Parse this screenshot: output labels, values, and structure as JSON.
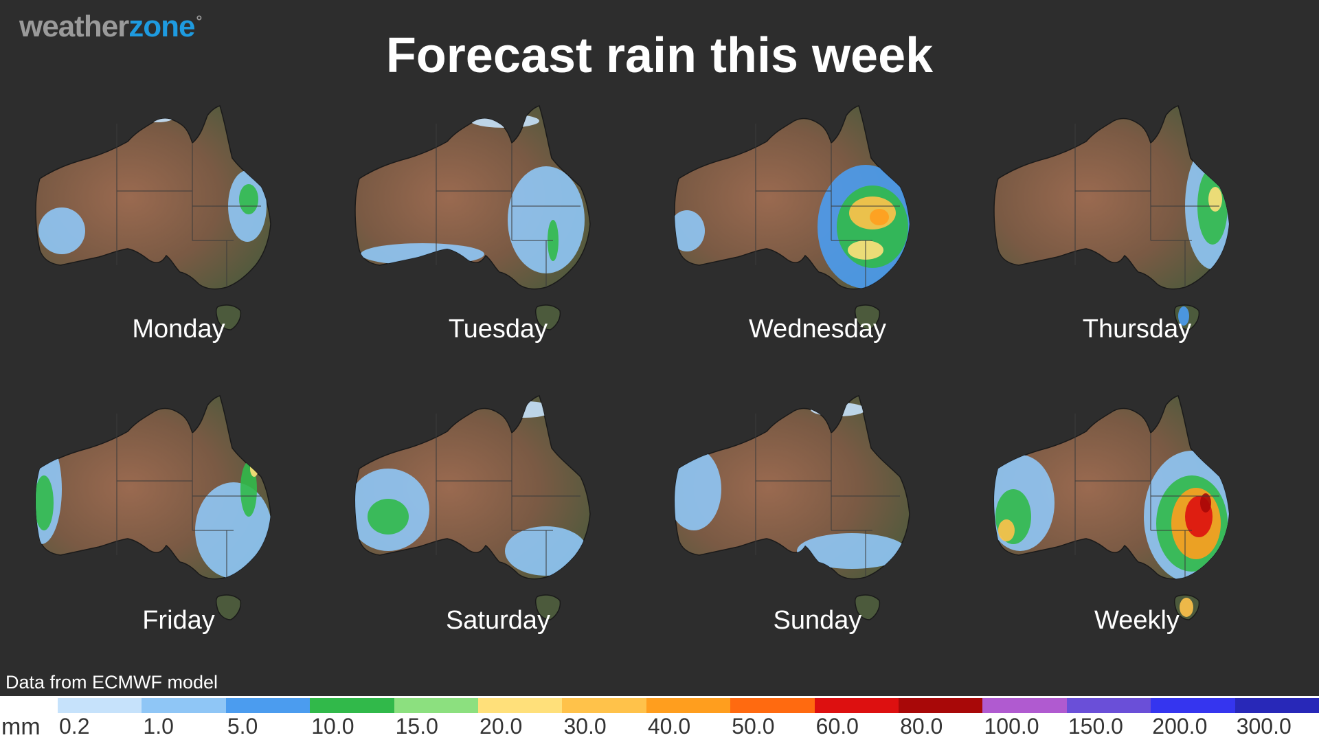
{
  "brand": {
    "name_part1": "weather",
    "name_part2": "zone",
    "symbol": "°"
  },
  "title": "Forecast rain this week",
  "panels": [
    {
      "label": "Monday"
    },
    {
      "label": "Tuesday"
    },
    {
      "label": "Wednesday"
    },
    {
      "label": "Thursday"
    },
    {
      "label": "Friday"
    },
    {
      "label": "Saturday"
    },
    {
      "label": "Sunday"
    },
    {
      "label": "Weekly"
    }
  ],
  "source": "Data from ECMWF model",
  "legend": {
    "unit": "mm",
    "ticks": [
      "0.2",
      "1.0",
      "5.0",
      "10.0",
      "15.0",
      "20.0",
      "30.0",
      "40.0",
      "50.0",
      "60.0",
      "80.0",
      "100.0",
      "150.0",
      "200.0",
      "300.0"
    ],
    "colors": [
      "#c6e2fb",
      "#8fc6f6",
      "#4b9cef",
      "#31b94a",
      "#8ce07f",
      "#ffe07a",
      "#ffc24a",
      "#ff9e1e",
      "#ff6a10",
      "#dd1010",
      "#a80808",
      "#b05ad0",
      "#6a4fd8",
      "#3535ef",
      "#2828b8"
    ]
  },
  "colors": {
    "background": "#2d2d2d",
    "land": "#7a5a44",
    "land_edge": "#4c5a3c"
  }
}
